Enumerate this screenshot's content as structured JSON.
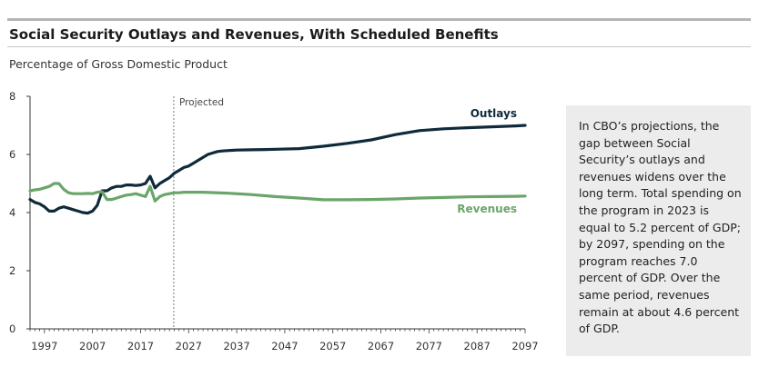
{
  "header": {
    "title": "Social Security Outlays and Revenues, With Scheduled Benefits",
    "subtitle": "Percentage of Gross Domestic Product"
  },
  "note": {
    "text": "In CBO’s projections, the gap between Social Security’s outlays and revenues widens over the long term. Total spending on the program in 2023 is equal to 5.2 percent of GDP; by 2097, spending on the program reaches 7.0 percent of GDP. Over the same period, revenues remain at about 4.6 percent of GDP."
  },
  "chart_data": {
    "type": "line",
    "xlim": [
      1994,
      2097
    ],
    "ylim": [
      0,
      8
    ],
    "x_ticks": [
      1997,
      2007,
      2017,
      2027,
      2037,
      2047,
      2057,
      2067,
      2077,
      2087,
      2097
    ],
    "y_ticks": [
      0,
      2,
      4,
      6,
      8
    ],
    "annotation": {
      "label": "Projected",
      "x": 2024
    },
    "colors": {
      "outlays": "#0f2a3a",
      "revenues": "#6aa56a"
    },
    "series": [
      {
        "name": "Outlays",
        "x": [
          1994,
          1995,
          1996,
          1997,
          1998,
          1999,
          2000,
          2001,
          2002,
          2003,
          2004,
          2005,
          2006,
          2007,
          2008,
          2009,
          2010,
          2011,
          2012,
          2013,
          2014,
          2015,
          2016,
          2017,
          2018,
          2019,
          2020,
          2021,
          2022,
          2023,
          2024,
          2025,
          2026,
          2027,
          2028,
          2029,
          2030,
          2031,
          2032,
          2033,
          2034,
          2035,
          2036,
          2037,
          2040,
          2043,
          2046,
          2050,
          2055,
          2060,
          2065,
          2070,
          2075,
          2080,
          2085,
          2090,
          2095,
          2097
        ],
        "values": [
          4.45,
          4.35,
          4.3,
          4.2,
          4.05,
          4.05,
          4.15,
          4.2,
          4.15,
          4.1,
          4.05,
          4.0,
          3.98,
          4.05,
          4.25,
          4.75,
          4.75,
          4.85,
          4.9,
          4.9,
          4.95,
          4.95,
          4.93,
          4.95,
          5.0,
          5.25,
          4.85,
          5.0,
          5.1,
          5.2,
          5.35,
          5.45,
          5.55,
          5.6,
          5.7,
          5.8,
          5.9,
          6.0,
          6.05,
          6.1,
          6.12,
          6.13,
          6.14,
          6.15,
          6.16,
          6.17,
          6.18,
          6.2,
          6.28,
          6.38,
          6.5,
          6.68,
          6.82,
          6.88,
          6.92,
          6.95,
          6.98,
          7.0
        ]
      },
      {
        "name": "Revenues",
        "x": [
          1994,
          1995,
          1996,
          1997,
          1998,
          1999,
          2000,
          2001,
          2002,
          2003,
          2004,
          2005,
          2006,
          2007,
          2008,
          2009,
          2010,
          2011,
          2012,
          2013,
          2014,
          2015,
          2016,
          2017,
          2018,
          2019,
          2020,
          2021,
          2022,
          2023,
          2024,
          2025,
          2026,
          2027,
          2028,
          2030,
          2035,
          2040,
          2045,
          2050,
          2055,
          2060,
          2065,
          2070,
          2075,
          2080,
          2085,
          2090,
          2095,
          2097
        ],
        "values": [
          4.75,
          4.78,
          4.8,
          4.85,
          4.9,
          5.0,
          5.0,
          4.8,
          4.68,
          4.65,
          4.65,
          4.65,
          4.66,
          4.65,
          4.7,
          4.72,
          4.45,
          4.45,
          4.5,
          4.55,
          4.6,
          4.62,
          4.65,
          4.6,
          4.55,
          4.9,
          4.4,
          4.55,
          4.62,
          4.65,
          4.68,
          4.68,
          4.7,
          4.7,
          4.7,
          4.7,
          4.67,
          4.62,
          4.55,
          4.5,
          4.44,
          4.44,
          4.45,
          4.47,
          4.5,
          4.52,
          4.54,
          4.55,
          4.56,
          4.57
        ]
      }
    ]
  }
}
